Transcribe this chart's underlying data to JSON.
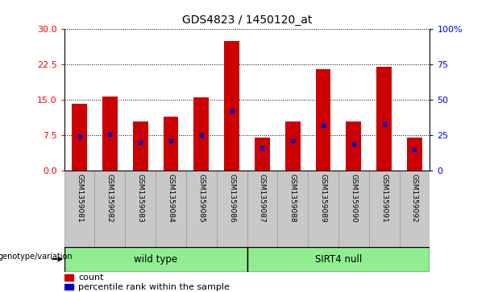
{
  "title": "GDS4823 / 1450120_at",
  "samples": [
    "GSM1359081",
    "GSM1359082",
    "GSM1359083",
    "GSM1359084",
    "GSM1359085",
    "GSM1359086",
    "GSM1359087",
    "GSM1359088",
    "GSM1359089",
    "GSM1359090",
    "GSM1359091",
    "GSM1359092"
  ],
  "counts": [
    14.2,
    15.8,
    10.5,
    11.5,
    15.5,
    27.5,
    7.0,
    10.5,
    21.5,
    10.5,
    22.0,
    7.0
  ],
  "percentile_ranks_pct": [
    24,
    26,
    20,
    21,
    25,
    42,
    16,
    21,
    32,
    19,
    33,
    15
  ],
  "groups": [
    {
      "label": "wild type",
      "start": 0,
      "end": 6,
      "color": "#90EE90"
    },
    {
      "label": "SIRT4 null",
      "start": 6,
      "end": 12,
      "color": "#90EE90"
    }
  ],
  "ylim_left": [
    0,
    30
  ],
  "ylim_right": [
    0,
    100
  ],
  "yticks_left": [
    0,
    7.5,
    15,
    22.5,
    30
  ],
  "yticks_right": [
    0,
    25,
    50,
    75,
    100
  ],
  "yticklabels_right": [
    "0",
    "25",
    "50",
    "75",
    "100%"
  ],
  "bar_color": "#CC0000",
  "marker_color": "#0000CC",
  "col_bg_color": "#C8C8C8",
  "genotype_label": "genotype/variation",
  "legend_count": "count",
  "legend_percentile": "percentile rank within the sample",
  "bar_width": 0.5,
  "n_samples": 12,
  "n_wild": 6,
  "n_sirt": 6
}
